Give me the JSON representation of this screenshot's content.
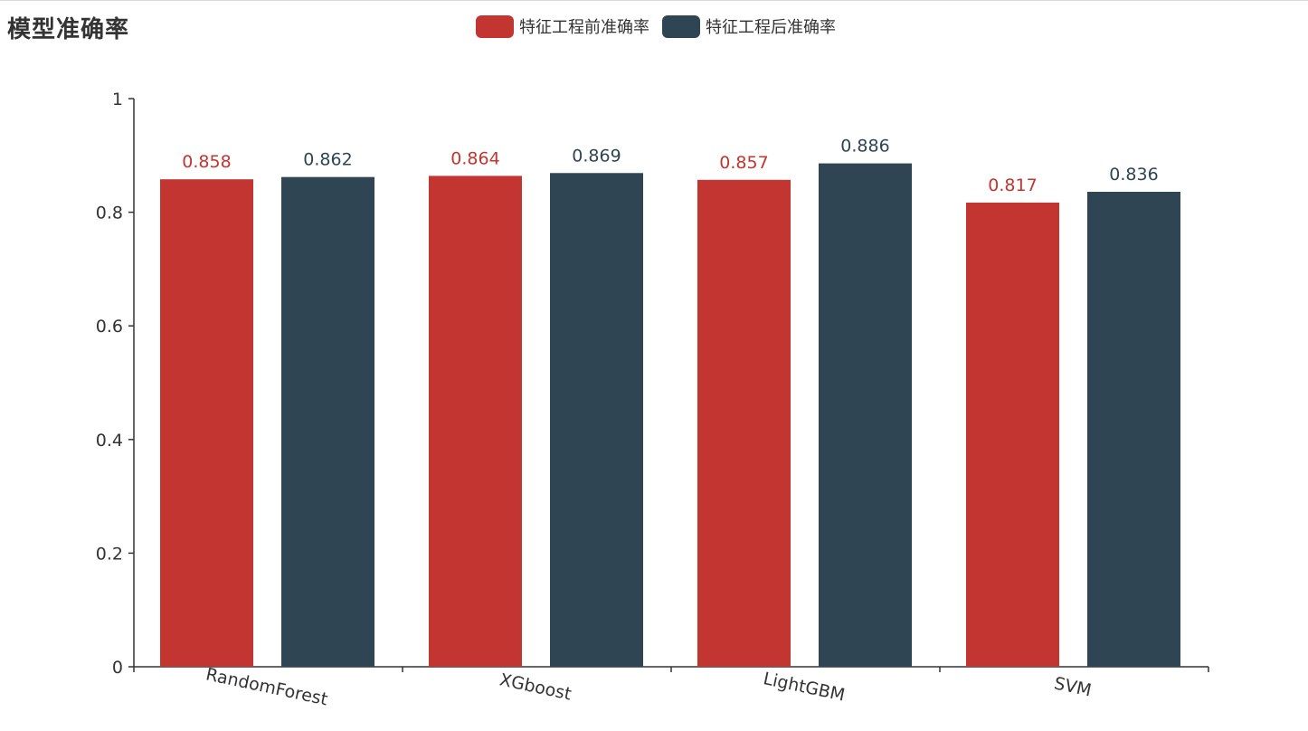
{
  "chart_data": {
    "type": "bar",
    "title": "模型准确率",
    "categories": [
      "RandomForest",
      "XGboost",
      "LightGBM",
      "SVM"
    ],
    "series": [
      {
        "name": "特征工程前准确率",
        "color": "#c23531",
        "values": [
          0.858,
          0.864,
          0.857,
          0.817
        ]
      },
      {
        "name": "特征工程后准确率",
        "color": "#2f4554",
        "values": [
          0.862,
          0.869,
          0.886,
          0.836
        ]
      }
    ],
    "ylim": [
      0,
      1
    ],
    "yticks": [
      "0",
      "0.2",
      "0.4",
      "0.6",
      "0.8",
      "1"
    ],
    "grid": false,
    "legend_position": "top-center"
  }
}
